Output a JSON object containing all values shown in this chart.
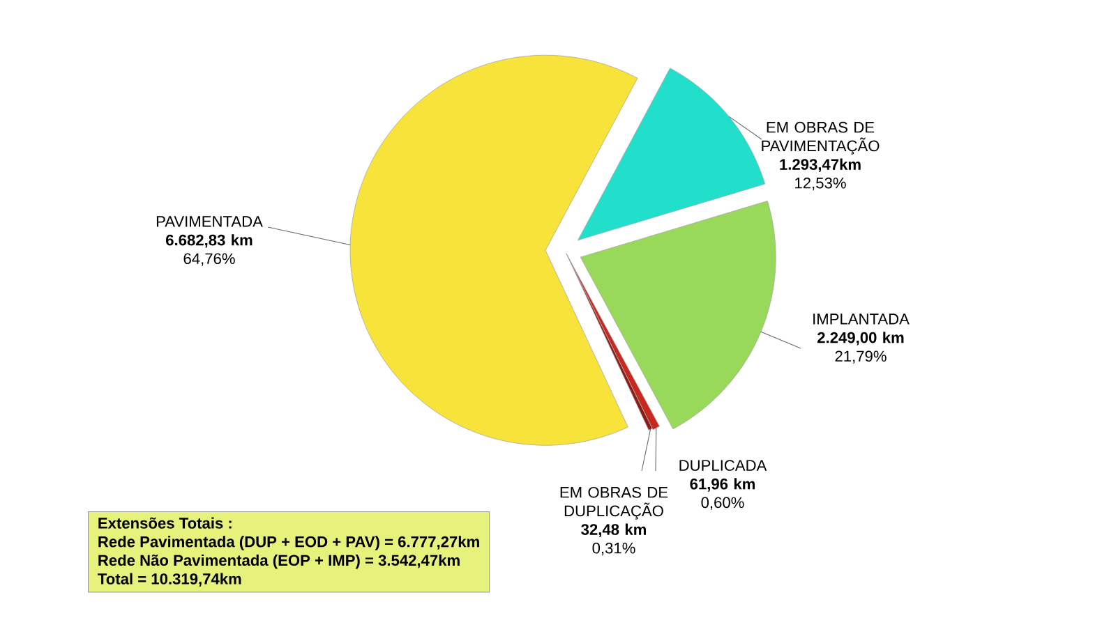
{
  "chart_data": {
    "type": "pie",
    "categories": [
      "PAVIMENTADA",
      "EM OBRAS DE PAVIMENTAÇÃO",
      "IMPLANTADA",
      "DUPLICADA",
      "EM OBRAS DE DUPLICAÇÃO"
    ],
    "values": [
      6682.83,
      1293.47,
      2249.0,
      61.96,
      32.48
    ],
    "colors": [
      "#f7e33a",
      "#22dfcc",
      "#98d95a",
      "#c8281e",
      "#8e1c14"
    ],
    "value_labels": [
      "6.682,83 km",
      "1.293,47km",
      "2.249,00 km",
      "61,96 km",
      "32,48 km"
    ],
    "annotations": [
      {
        "text": "64,76%",
        "x": "PAVIMENTADA"
      },
      {
        "text": "12,53%",
        "x": "EM OBRAS DE PAVIMENTAÇÃO"
      },
      {
        "text": "21,79%",
        "x": "IMPLANTADA"
      },
      {
        "text": "0,60%",
        "x": "DUPLICADA"
      },
      {
        "text": "0,31%",
        "x": "EM OBRAS DE DUPLICAÇÃO"
      },
      "Extensões Totais :",
      "Rede Pavimentada (DUP + EOD + PAV)  = 6.777,27km",
      "Rede Não Pavimentada (EOP + IMP) = 3.542,47km",
      "Total = 10.319,74km"
    ]
  }
}
